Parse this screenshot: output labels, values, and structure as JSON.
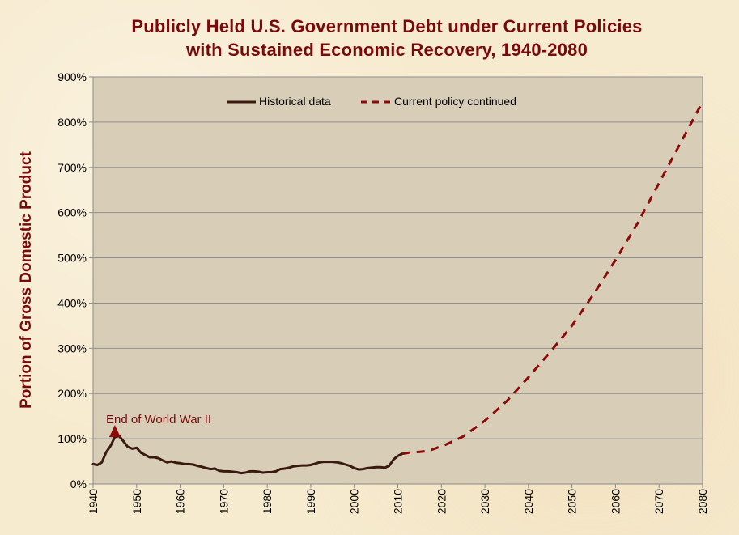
{
  "chart_data": {
    "type": "line",
    "title": "Publicly Held U.S. Government Debt under Current Policies",
    "subtitle": "with Sustained Economic Recovery, 1940-2080",
    "xlabel": "",
    "ylabel": "Portion of Gross Domestic Product",
    "xlim": [
      1940,
      2080
    ],
    "ylim": [
      0,
      900
    ],
    "y_tick_labels": [
      "0%",
      "100%",
      "200%",
      "300%",
      "400%",
      "500%",
      "600%",
      "700%",
      "800%",
      "900%"
    ],
    "x_tick_labels": [
      "1940",
      "1950",
      "1960",
      "1970",
      "1980",
      "1990",
      "2000",
      "2010",
      "2020",
      "2030",
      "2040",
      "2050",
      "2060",
      "2070",
      "2080"
    ],
    "grid": "horizontal",
    "legend_position": "top",
    "annotation": {
      "text": "End of World War II",
      "x": 1945,
      "y": 109
    },
    "series": [
      {
        "name": "Historical data",
        "style": "solid",
        "color": "#3a1a10",
        "x": [
          1940,
          1941,
          1942,
          1943,
          1944,
          1945,
          1946,
          1947,
          1948,
          1949,
          1950,
          1951,
          1952,
          1953,
          1954,
          1955,
          1956,
          1957,
          1958,
          1959,
          1960,
          1961,
          1962,
          1963,
          1964,
          1965,
          1966,
          1967,
          1968,
          1969,
          1970,
          1971,
          1972,
          1973,
          1974,
          1975,
          1976,
          1977,
          1978,
          1979,
          1980,
          1981,
          1982,
          1983,
          1984,
          1985,
          1986,
          1987,
          1988,
          1989,
          1990,
          1991,
          1992,
          1993,
          1994,
          1995,
          1996,
          1997,
          1998,
          1999,
          2000,
          2001,
          2002,
          2003,
          2004,
          2005,
          2006,
          2007,
          2008,
          2009,
          2010,
          2011
        ],
        "y": [
          44,
          42,
          48,
          70,
          84,
          104,
          106,
          94,
          82,
          78,
          80,
          69,
          64,
          59,
          59,
          57,
          52,
          48,
          50,
          47,
          46,
          44,
          44,
          43,
          40,
          38,
          35,
          33,
          34,
          29,
          28,
          28,
          27,
          26,
          24,
          25,
          28,
          28,
          27,
          25,
          26,
          26,
          28,
          33,
          34,
          36,
          39,
          40,
          41,
          41,
          42,
          45,
          48,
          49,
          49,
          49,
          48,
          46,
          43,
          40,
          35,
          32,
          33,
          35,
          36,
          37,
          37,
          36,
          40,
          54,
          62,
          67
        ]
      },
      {
        "name": "Current policy continued",
        "style": "dashed",
        "color": "#8b0a0a",
        "x": [
          2011,
          2013,
          2015,
          2017,
          2019,
          2021,
          2025,
          2030,
          2035,
          2040,
          2045,
          2050,
          2055,
          2060,
          2065,
          2070,
          2075,
          2080
        ],
        "y": [
          67,
          70,
          71,
          73,
          80,
          87,
          105,
          140,
          183,
          236,
          292,
          350,
          420,
          495,
          575,
          665,
          755,
          845
        ]
      }
    ]
  }
}
